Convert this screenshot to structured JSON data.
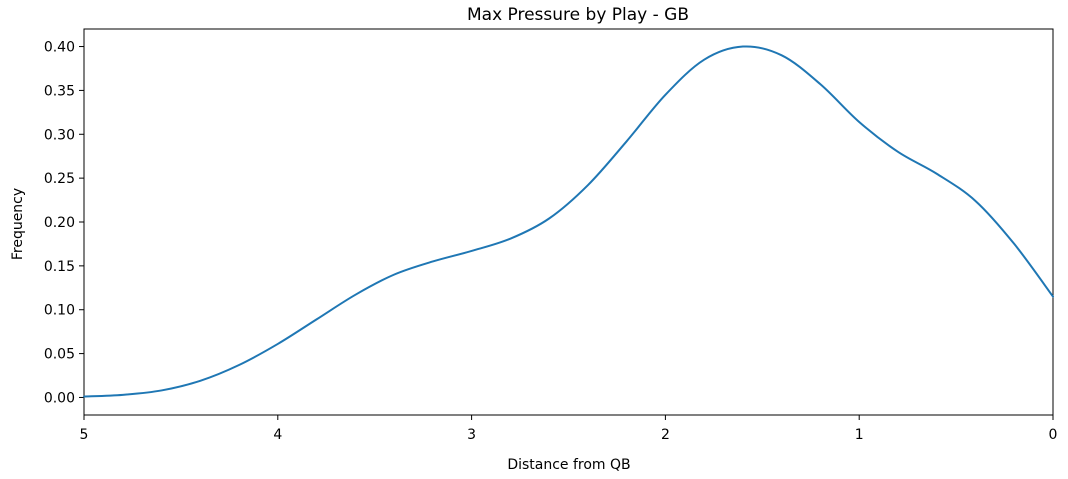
{
  "chart_data": {
    "type": "line",
    "title": "Max Pressure by Play - GB",
    "xlabel": "Distance from QB",
    "ylabel": "Frequency",
    "xlim": [
      5,
      0
    ],
    "ylim": [
      -0.02,
      0.42
    ],
    "x_reversed": true,
    "grid": false,
    "xticks": [
      5,
      4,
      3,
      2,
      1,
      0
    ],
    "xtick_labels": [
      "5",
      "4",
      "3",
      "2",
      "1",
      "0"
    ],
    "yticks": [
      0.0,
      0.05,
      0.1,
      0.15,
      0.2,
      0.25,
      0.3,
      0.35,
      0.4
    ],
    "ytick_labels": [
      "0.00",
      "0.05",
      "0.10",
      "0.15",
      "0.20",
      "0.25",
      "0.30",
      "0.35",
      "0.40"
    ],
    "series": [
      {
        "color": "#1f77b4",
        "x": [
          5.0,
          4.8,
          4.6,
          4.4,
          4.2,
          4.0,
          3.8,
          3.6,
          3.4,
          3.2,
          3.0,
          2.8,
          2.6,
          2.4,
          2.2,
          2.0,
          1.8,
          1.6,
          1.4,
          1.2,
          1.0,
          0.8,
          0.6,
          0.4,
          0.2,
          0.0
        ],
        "y": [
          0.001,
          0.003,
          0.008,
          0.019,
          0.037,
          0.061,
          0.089,
          0.117,
          0.14,
          0.155,
          0.167,
          0.181,
          0.204,
          0.242,
          0.292,
          0.345,
          0.385,
          0.4,
          0.39,
          0.357,
          0.314,
          0.28,
          0.255,
          0.224,
          0.175,
          0.115
        ]
      }
    ]
  }
}
